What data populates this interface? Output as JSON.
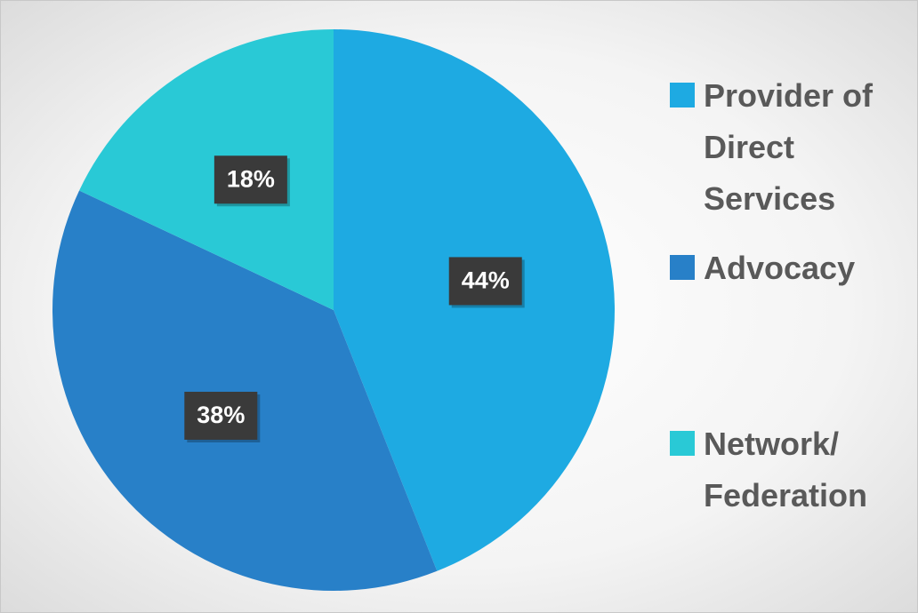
{
  "chart_data": {
    "type": "pie",
    "categories": [
      "Provider of Direct Services",
      "Advocacy",
      "Network/ Federation"
    ],
    "values": [
      44,
      38,
      18
    ],
    "value_labels": [
      "44%",
      "38%",
      "18%"
    ],
    "colors": [
      "#1eaae2",
      "#2880c8",
      "#29c9d6"
    ],
    "legend": "right"
  }
}
